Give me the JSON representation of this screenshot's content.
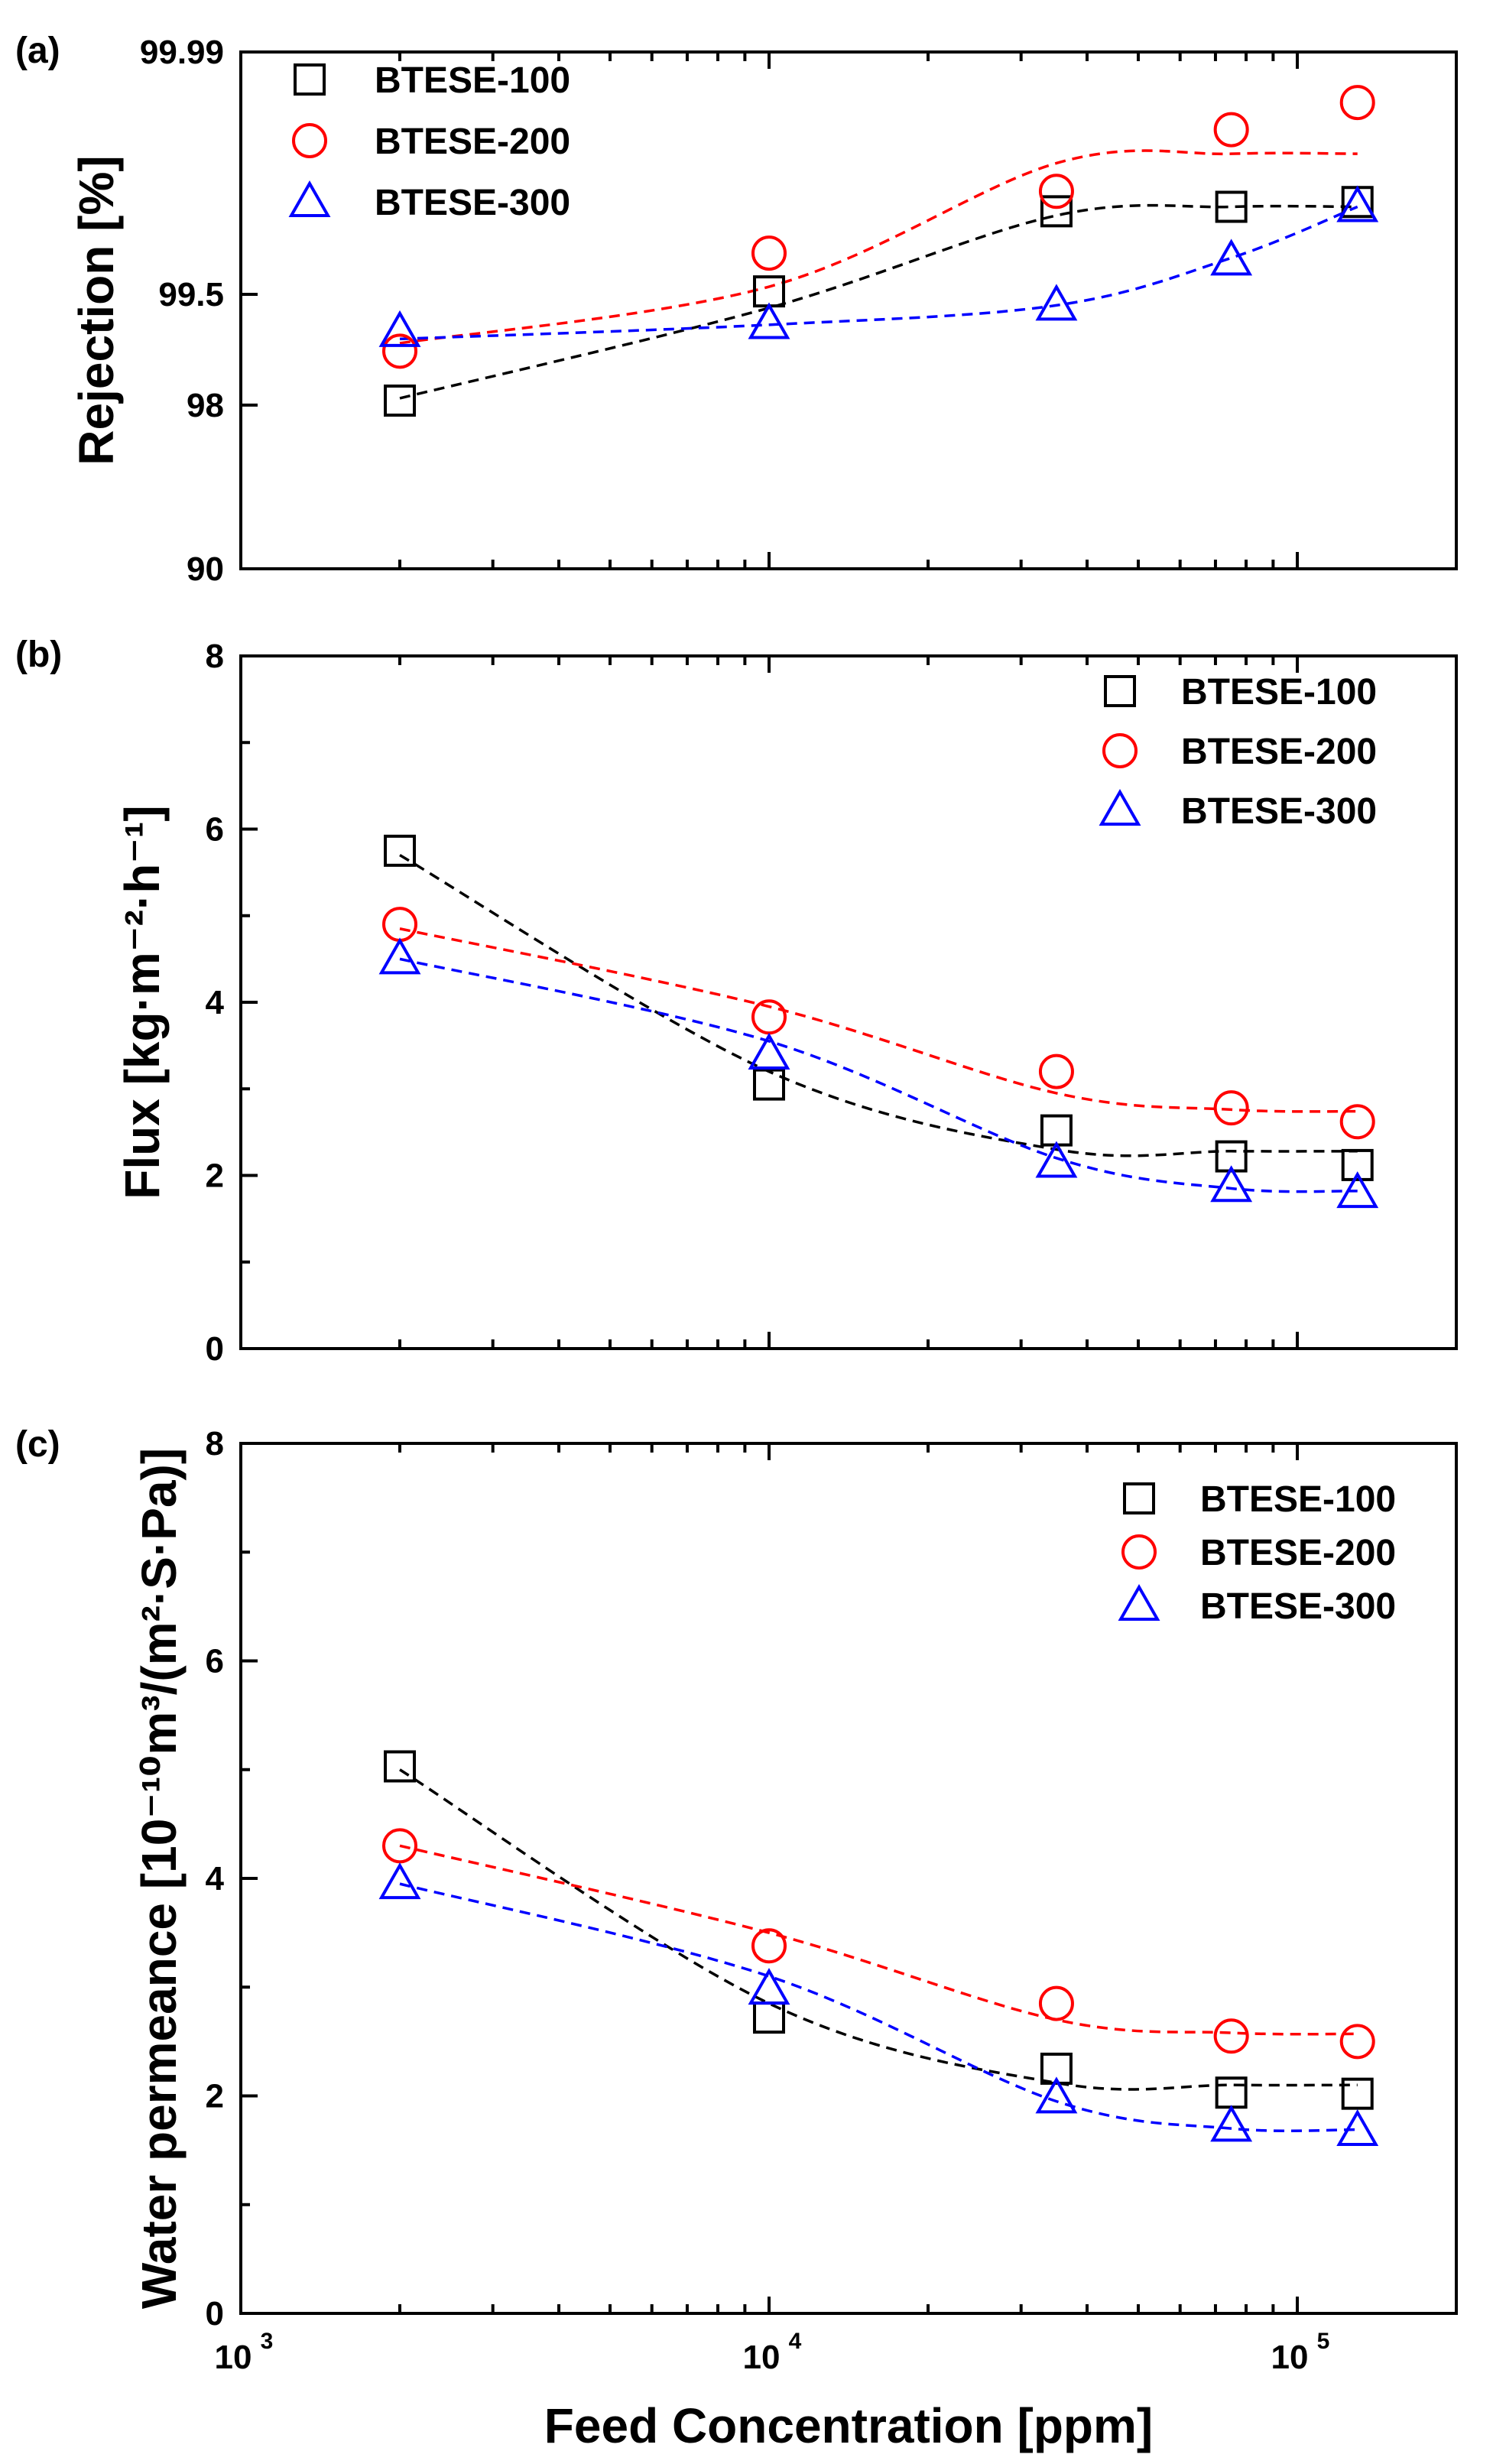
{
  "chart_data": [
    {
      "type": "scatter",
      "panel_label": "(a)",
      "ylabel": "Rejection [%]",
      "yscale": "probability",
      "xscale": "log",
      "xlim": [
        1000,
        200000
      ],
      "ytick_labels": [
        "99.99",
        "99.5",
        "98",
        "90"
      ],
      "ytick_values": [
        99.99,
        99.5,
        98,
        90
      ],
      "legend_position": "top-left",
      "series": [
        {
          "name": "BTESE-100",
          "marker": "square",
          "color": "#000000",
          "x": [
            2000,
            10000,
            35000,
            75000,
            130000
          ],
          "y": [
            98.1,
            99.52,
            99.85,
            99.86,
            99.87
          ],
          "fit_y": [
            98.15,
            99.4,
            99.84,
            99.86,
            99.86
          ]
        },
        {
          "name": "BTESE-200",
          "marker": "circle",
          "color": "#ff0000",
          "x": [
            2000,
            10000,
            35000,
            75000,
            130000
          ],
          "y": [
            98.95,
            99.72,
            99.89,
            99.96,
            99.975
          ],
          "fit_y": [
            99.05,
            99.55,
            99.93,
            99.94,
            99.94
          ]
        },
        {
          "name": "BTESE-300",
          "marker": "triangle",
          "color": "#0000ff",
          "x": [
            2000,
            10000,
            35000,
            75000,
            130000
          ],
          "y": [
            99.18,
            99.26,
            99.42,
            99.69,
            99.86
          ],
          "fit_y": [
            99.1,
            99.25,
            99.42,
            99.7,
            99.86
          ]
        }
      ]
    },
    {
      "type": "scatter",
      "panel_label": "(b)",
      "ylabel": "Flux [kg·m⁻²·h⁻¹]",
      "xscale": "log",
      "xlim": [
        1000,
        200000
      ],
      "ylim": [
        0,
        8
      ],
      "ytick_labels": [
        "0",
        "2",
        "4",
        "6",
        "8"
      ],
      "legend_position": "top-right",
      "series": [
        {
          "name": "BTESE-100",
          "marker": "square",
          "color": "#000000",
          "x": [
            2000,
            10000,
            35000,
            75000,
            130000
          ],
          "y": [
            5.75,
            3.05,
            2.52,
            2.22,
            2.12
          ],
          "fit_y": [
            5.7,
            3.2,
            2.3,
            2.28,
            2.28
          ]
        },
        {
          "name": "BTESE-200",
          "marker": "circle",
          "color": "#ff0000",
          "x": [
            2000,
            10000,
            35000,
            75000,
            130000
          ],
          "y": [
            4.9,
            3.83,
            3.2,
            2.78,
            2.62
          ],
          "fit_y": [
            4.85,
            3.95,
            2.95,
            2.76,
            2.74
          ]
        },
        {
          "name": "BTESE-300",
          "marker": "triangle",
          "color": "#0000ff",
          "x": [
            2000,
            10000,
            35000,
            75000,
            130000
          ],
          "y": [
            4.5,
            3.4,
            2.15,
            1.87,
            1.8
          ],
          "fit_y": [
            4.5,
            3.55,
            2.2,
            1.85,
            1.82
          ]
        }
      ]
    },
    {
      "type": "scatter",
      "panel_label": "(c)",
      "ylabel": "Water permeance [10⁻¹⁰m³/(m²·S·Pa)]",
      "xlabel": "Feed Concentration [ppm]",
      "xscale": "log",
      "xlim": [
        1000,
        200000
      ],
      "ylim": [
        0,
        8
      ],
      "ytick_labels": [
        "0",
        "2",
        "4",
        "6",
        "8"
      ],
      "xtick_labels": [
        {
          "base": "10",
          "exp": "3"
        },
        {
          "base": "10",
          "exp": "4"
        },
        {
          "base": "10",
          "exp": "5"
        }
      ],
      "legend_position": "top-right",
      "series": [
        {
          "name": "BTESE-100",
          "marker": "square",
          "color": "#000000",
          "x": [
            2000,
            10000,
            35000,
            75000,
            130000
          ],
          "y": [
            5.03,
            2.72,
            2.25,
            2.03,
            2.02
          ],
          "fit_y": [
            5.0,
            2.85,
            2.12,
            2.1,
            2.1
          ]
        },
        {
          "name": "BTESE-200",
          "marker": "circle",
          "color": "#ff0000",
          "x": [
            2000,
            10000,
            35000,
            75000,
            130000
          ],
          "y": [
            4.3,
            3.38,
            2.85,
            2.55,
            2.5
          ],
          "fit_y": [
            4.3,
            3.5,
            2.7,
            2.58,
            2.57
          ]
        },
        {
          "name": "BTESE-300",
          "marker": "triangle",
          "color": "#0000ff",
          "x": [
            2000,
            10000,
            35000,
            75000,
            130000
          ],
          "y": [
            3.95,
            2.98,
            1.98,
            1.72,
            1.68
          ],
          "fit_y": [
            3.95,
            3.1,
            1.95,
            1.7,
            1.69
          ]
        }
      ]
    }
  ]
}
